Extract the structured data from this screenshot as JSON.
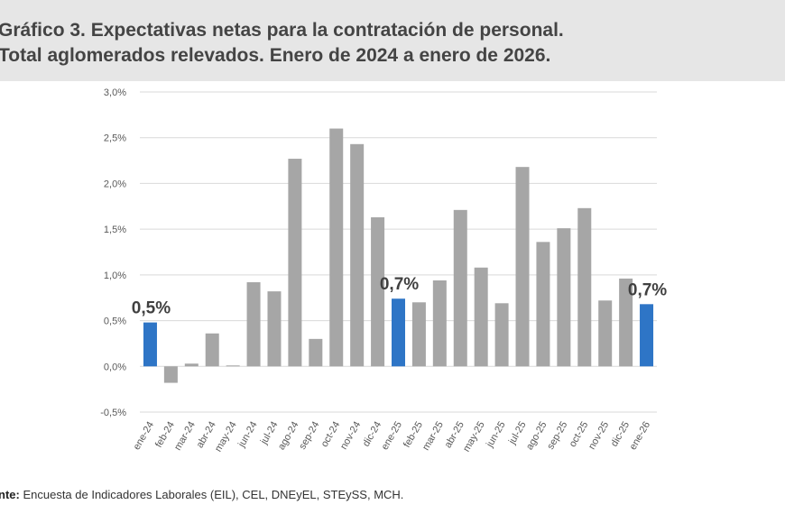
{
  "header": {
    "title_line1": "Gráfico 3. Expectativas netas para la contratación de personal.",
    "title_line2": "Total aglomerados relevados. Enero de 2024 a enero de 2026."
  },
  "footer": {
    "label": "nte:",
    "text": " Encuesta de Indicadores Laborales (EIL), CEL, DNEyEL, STEySS, MCH."
  },
  "chart_data": {
    "type": "bar",
    "title": "",
    "xlabel": "",
    "ylabel": "",
    "ylim": [
      -0.5,
      3.0
    ],
    "yticks": [
      "-0,5%",
      "0,0%",
      "0,5%",
      "1,0%",
      "1,5%",
      "2,0%",
      "2,5%",
      "3,0%"
    ],
    "grid": true,
    "categories": [
      "ene-24",
      "feb-24",
      "mar-24",
      "abr-24",
      "may-24",
      "jun-24",
      "jul-24",
      "ago-24",
      "sep-24",
      "oct-24",
      "nov-24",
      "dic-24",
      "ene-25",
      "feb-25",
      "mar-25",
      "abr-25",
      "may-25",
      "jun-25",
      "jul-25",
      "ago-25",
      "sep-25",
      "oct-25",
      "nov-25",
      "dic-25",
      "ene-26"
    ],
    "values": [
      0.48,
      -0.18,
      0.03,
      0.36,
      0.01,
      0.92,
      0.82,
      2.27,
      0.3,
      2.6,
      2.43,
      1.63,
      0.74,
      0.7,
      0.94,
      1.71,
      1.08,
      0.69,
      2.18,
      1.36,
      1.51,
      1.73,
      0.72,
      0.96,
      0.68
    ],
    "highlighted": [
      "ene-24",
      "ene-25",
      "ene-26"
    ],
    "annotations": [
      {
        "category": "ene-24",
        "text": "0,5%"
      },
      {
        "category": "ene-25",
        "text": "0,7%"
      },
      {
        "category": "ene-26",
        "text": "0,7%"
      }
    ],
    "colors": {
      "default": "#a6a6a6",
      "highlight": "#2e75c6"
    }
  }
}
